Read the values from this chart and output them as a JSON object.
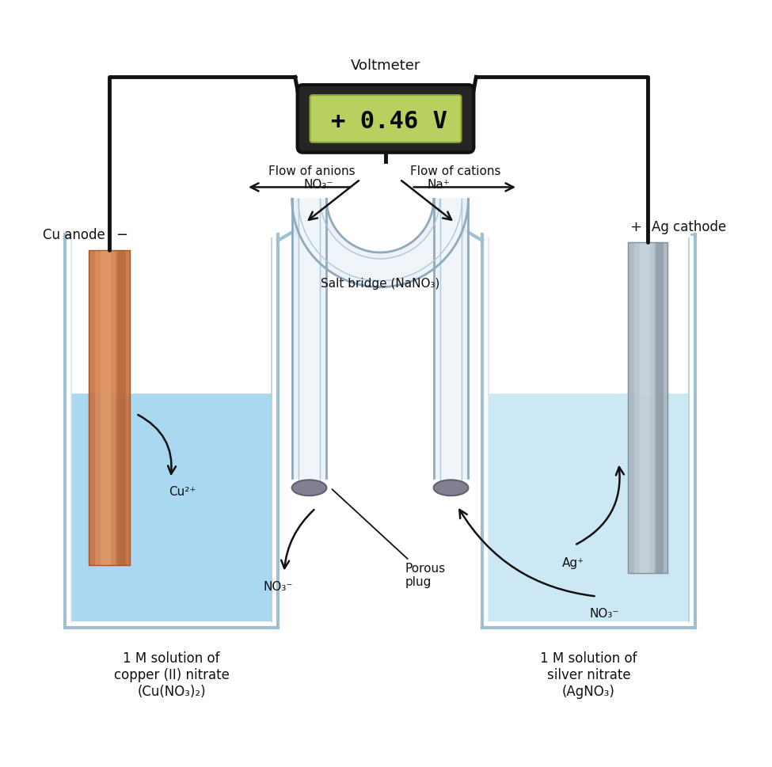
{
  "fig_width": 9.75,
  "fig_height": 9.69,
  "bg_color": "#ffffff",
  "solution_color_left": "#aad8f0",
  "solution_color_right": "#cce8f5",
  "beaker_wall_color": "#a0c0d0",
  "beaker_fill_color": "#d8eef8",
  "cu_color_main": "#c87040",
  "cu_color_light": "#e09060",
  "cu_color_dark": "#a05020",
  "ag_color_main": "#a8b4be",
  "ag_color_light": "#c8d4de",
  "ag_color_dark": "#808c96",
  "plug_color": "#808090",
  "plug_edge": "#606070",
  "salt_bridge_fill": "#e8f0f8",
  "salt_bridge_wall": "#90aabb",
  "voltmeter_outer": "#282828",
  "voltmeter_screen": "#b8d060",
  "voltmeter_text_color": "#101010",
  "wire_color": "#111111",
  "text_color": "#111111",
  "arrow_color": "#111111",
  "voltmeter_reading": "+ 0.46 V",
  "label_voltmeter": "Voltmeter",
  "label_cu_anode": "Cu anode",
  "label_ag_cathode": "Ag cathode",
  "label_minus": "−",
  "label_plus": "+",
  "label_salt_bridge": "Salt bridge (NaNO₃)",
  "label_porous_plug": "Porous\nplug",
  "label_cu2plus": "Cu²⁺",
  "label_no3_left": "NO₃⁻",
  "label_no3_right": "NO₃⁻",
  "label_agplus": "Ag⁺",
  "label_naplus": "Na⁺",
  "label_no3_bridge": "NO₃⁻",
  "label_flow_anions": "Flow of anions",
  "label_flow_cations": "Flow of cations",
  "label_left_solution_line1": "1 ",
  "label_left_solution_line2": "M",
  "label_left_solution": "1 M solution of\ncopper (II) nitrate\n(Cu(NO₃)₂)",
  "label_right_solution": "1 M solution of\nsilver nitrate\n(AgNO₃)"
}
